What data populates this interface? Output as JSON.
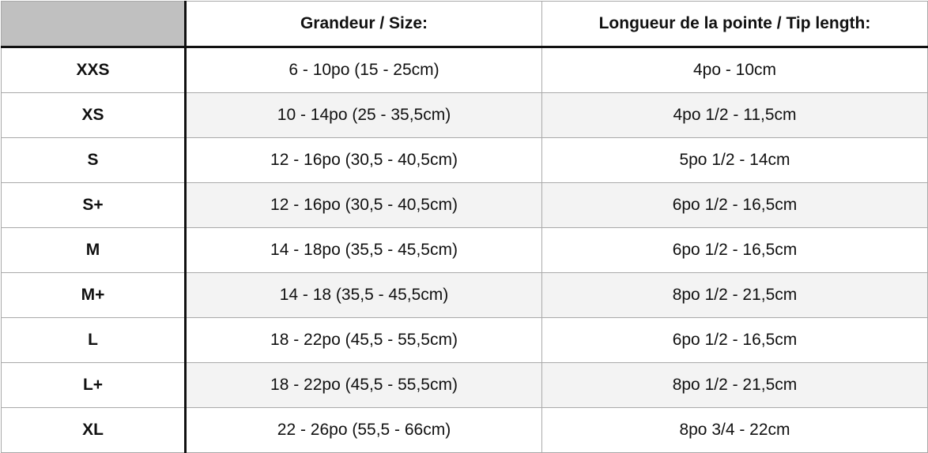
{
  "header": {
    "corner": "",
    "size_col": "Grandeur / Size:",
    "tip_col": "Longueur de la pointe / Tip length:"
  },
  "rows": [
    {
      "size": "XXS",
      "range": "6 - 10po (15 - 25cm)",
      "tip": "4po - 10cm"
    },
    {
      "size": "XS",
      "range": "10 - 14po (25 - 35,5cm)",
      "tip": "4po 1/2 - 11,5cm"
    },
    {
      "size": "S",
      "range": "12 - 16po (30,5 - 40,5cm)",
      "tip": "5po 1/2 - 14cm"
    },
    {
      "size": "S+",
      "range": "12 - 16po (30,5 - 40,5cm)",
      "tip": "6po 1/2 - 16,5cm"
    },
    {
      "size": "M",
      "range": "14 - 18po (35,5 - 45,5cm)",
      "tip": "6po 1/2 - 16,5cm"
    },
    {
      "size": "M+",
      "range": "14 - 18 (35,5 - 45,5cm)",
      "tip": "8po 1/2 - 21,5cm"
    },
    {
      "size": "L",
      "range": "18 - 22po (45,5 - 55,5cm)",
      "tip": "6po 1/2 - 16,5cm"
    },
    {
      "size": "L+",
      "range": "18 - 22po (45,5 - 55,5cm)",
      "tip": "8po 1/2 - 21,5cm"
    },
    {
      "size": "XL",
      "range": "22 - 26po (55,5 - 66cm)",
      "tip": "8po 3/4 - 22cm"
    }
  ]
}
